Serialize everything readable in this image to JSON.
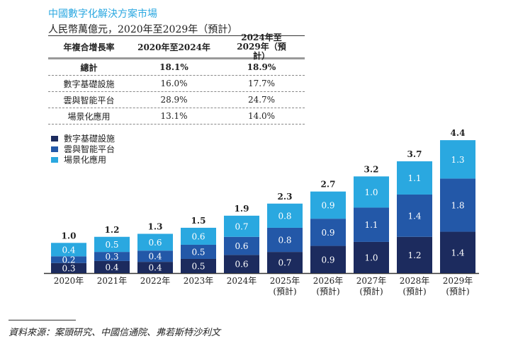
{
  "title": "中國數字化解決方案市場",
  "subtitle": "人民幣萬億元，2020年至2029年（預計）",
  "table": {
    "headers": [
      "年複合增長率",
      "2020年至2024年",
      "2024年至2029年（預計）"
    ],
    "rows": [
      {
        "label": "總計",
        "a": "18.1%",
        "b": "18.9%"
      },
      {
        "label": "數字基礎設施",
        "a": "16.0%",
        "b": "17.7%"
      },
      {
        "label": "雲與智能平台",
        "a": "28.9%",
        "b": "24.7%"
      },
      {
        "label": "場景化應用",
        "a": "13.1%",
        "b": "14.0%"
      }
    ]
  },
  "source": "資料來源：案頭研究、中國信通院、弗若斯特沙利文",
  "chart_data": {
    "type": "bar",
    "stacked": true,
    "categories": [
      "2020年",
      "2021年",
      "2022年",
      "2023年",
      "2024年",
      "2025年\n(預計)",
      "2026年\n(預計)",
      "2027年\n(預計)",
      "2028年\n(預計)",
      "2029年\n(預計)"
    ],
    "series": [
      {
        "name": "數字基礎設施",
        "color": "#1c2b5e",
        "values": [
          0.3,
          0.4,
          0.4,
          0.5,
          0.6,
          0.7,
          0.9,
          1.0,
          1.2,
          1.4
        ]
      },
      {
        "name": "雲與智能平台",
        "color": "#2358a8",
        "values": [
          0.2,
          0.3,
          0.4,
          0.5,
          0.6,
          0.8,
          0.9,
          1.1,
          1.4,
          1.8
        ]
      },
      {
        "name": "場景化應用",
        "color": "#2aa8e0",
        "values": [
          0.4,
          0.5,
          0.6,
          0.6,
          0.7,
          0.8,
          0.9,
          1.0,
          1.1,
          1.3
        ]
      }
    ],
    "totals": [
      1.0,
      1.2,
      1.3,
      1.5,
      1.9,
      2.3,
      2.7,
      3.2,
      3.7,
      4.4
    ],
    "legend": "top-left"
  }
}
